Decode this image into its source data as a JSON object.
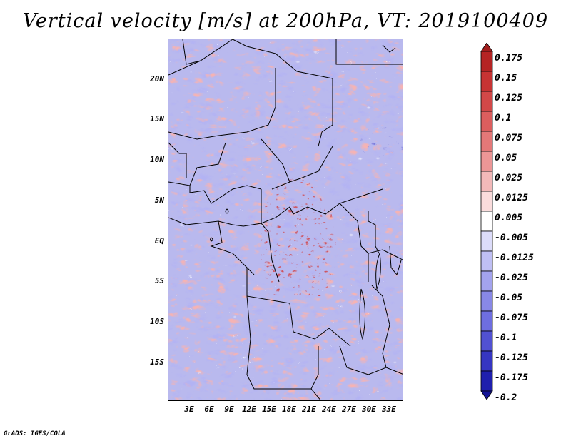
{
  "title": "Vertical velocity [m/s] at 200hPa, VT: 2019100409",
  "footer": "GrADS: IGES/COLA",
  "map": {
    "lat_labels": [
      "20N",
      "15N",
      "10N",
      "5N",
      "EQ",
      "5S",
      "10S",
      "15S"
    ],
    "lon_labels": [
      "3E",
      "6E",
      "9E",
      "12E",
      "15E",
      "18E",
      "21E",
      "24E",
      "27E",
      "30E",
      "33E"
    ],
    "lon_range": [
      0,
      35
    ],
    "lat_range": [
      -20,
      24
    ]
  },
  "colorbar": {
    "labels": [
      "0.175",
      "0.15",
      "0.125",
      "0.1",
      "0.075",
      "0.05",
      "0.025",
      "0.0125",
      "0.005",
      "-0.005",
      "-0.0125",
      "-0.025",
      "-0.05",
      "-0.075",
      "-0.1",
      "-0.125",
      "-0.175",
      "-0.2"
    ],
    "colors": [
      "#a11d1d",
      "#b52424",
      "#c73333",
      "#d24848",
      "#dc5e5e",
      "#e47878",
      "#ec9696",
      "#f3b9b9",
      "#fadcdc",
      "#ffffff",
      "#dcdcfa",
      "#bfbff4",
      "#a3a3ee",
      "#8888e6",
      "#6e6ee0",
      "#5151d2",
      "#3636c2",
      "#1f1fad",
      "#141496"
    ]
  }
}
